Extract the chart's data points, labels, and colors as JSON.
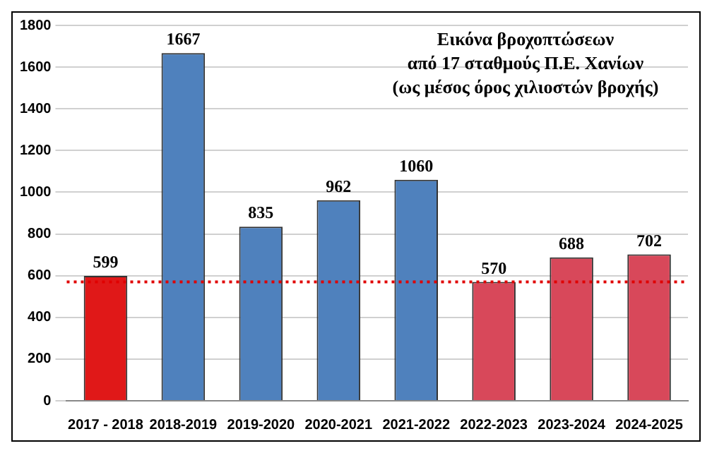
{
  "chart_data": {
    "type": "bar",
    "title": "Εικόνα βροχοπτώσεων\nαπό 17 σταθμούς Π.Ε. Χανίων\n(ως μέσος όρος χιλιοστών βροχής)",
    "categories": [
      "2017 - 2018",
      "2018-2019",
      "2019-2020",
      "2020-2021",
      "2021-2022",
      "2022-2023",
      "2023-2024",
      "2024-2025"
    ],
    "values": [
      599,
      1667,
      835,
      962,
      1060,
      570,
      688,
      702
    ],
    "colors": [
      "#e01818",
      "#4f81bd",
      "#4f81bd",
      "#4f81bd",
      "#4f81bd",
      "#d8485a",
      "#d8485a",
      "#d8485a"
    ],
    "data_labels": true,
    "ylim": [
      0,
      1800
    ],
    "yticks": [
      0,
      200,
      400,
      600,
      800,
      1000,
      1200,
      1400,
      1600,
      1800
    ],
    "grid": "y",
    "ref_lines": [
      {
        "axis": "y",
        "value": 570,
        "color": "#e00000",
        "line_style": "dotted"
      }
    ]
  }
}
